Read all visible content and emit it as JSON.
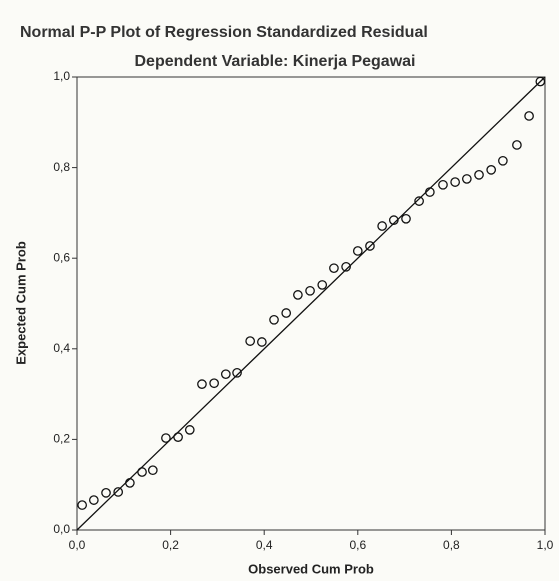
{
  "chart_data": {
    "type": "scatter",
    "title": "Normal P-P Plot of Regression Standardized Residual",
    "subtitle": "Dependent Variable: Kinerja Pegawai",
    "x_label": "Observed Cum Prob",
    "y_label": "Expected Cum Prob",
    "x": [
      0.011,
      0.036,
      0.062,
      0.088,
      0.113,
      0.139,
      0.162,
      0.19,
      0.216,
      0.241,
      0.267,
      0.293,
      0.318,
      0.342,
      0.37,
      0.395,
      0.421,
      0.447,
      0.472,
      0.498,
      0.524,
      0.549,
      0.575,
      0.6,
      0.626,
      0.652,
      0.677,
      0.703,
      0.731,
      0.754,
      0.782,
      0.808,
      0.833,
      0.859,
      0.885,
      0.91,
      0.94,
      0.966,
      0.99
    ],
    "values": [
      0.055,
      0.066,
      0.082,
      0.084,
      0.104,
      0.128,
      0.132,
      0.203,
      0.205,
      0.221,
      0.322,
      0.324,
      0.344,
      0.347,
      0.417,
      0.415,
      0.464,
      0.479,
      0.519,
      0.528,
      0.541,
      0.578,
      0.581,
      0.616,
      0.627,
      0.671,
      0.684,
      0.687,
      0.726,
      0.746,
      0.762,
      0.768,
      0.775,
      0.784,
      0.795,
      0.815,
      0.85,
      0.914,
      0.99
    ],
    "color": "#111111",
    "xlim": [
      0,
      1
    ],
    "ylim": [
      0,
      1
    ],
    "xticks": [
      {
        "value": 0,
        "label": "0,0"
      },
      {
        "value": 0.2,
        "label": "0,2"
      },
      {
        "value": 0.4,
        "label": "0,4"
      },
      {
        "value": 0.6,
        "label": "0,6"
      },
      {
        "value": 0.8,
        "label": "0,8"
      },
      {
        "value": 1,
        "label": "1,0"
      }
    ],
    "yticks": [
      {
        "value": 0,
        "label": "0,0"
      },
      {
        "value": 0.2,
        "label": "0,2"
      },
      {
        "value": 0.4,
        "label": "0,4"
      },
      {
        "value": 0.6,
        "label": "0,6"
      },
      {
        "value": 0.8,
        "label": "0,8"
      },
      {
        "value": 1,
        "label": "1,0"
      }
    ]
  }
}
